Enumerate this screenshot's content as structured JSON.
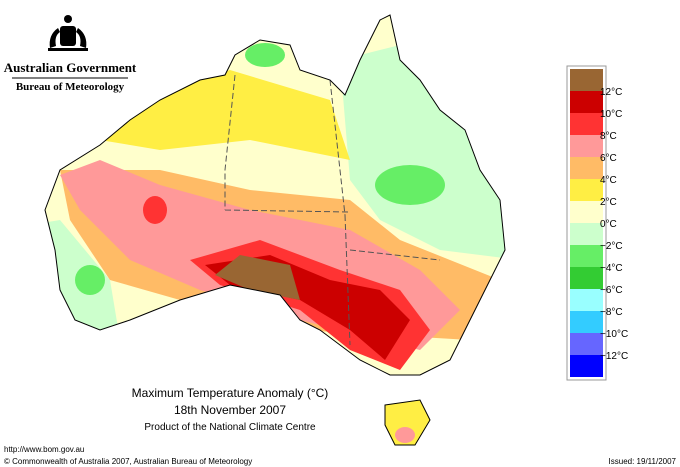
{
  "header": {
    "government": "Australian Government",
    "bureau": "Bureau of Meteorology"
  },
  "legend": {
    "colors": [
      "#996633",
      "#cc0000",
      "#ff3333",
      "#ff9999",
      "#ffbb66",
      "#ffee44",
      "#ffffcc",
      "#ccffcc",
      "#66ee66",
      "#33cc33",
      "#99ffff",
      "#33ccff",
      "#6666ff",
      "#0000ff"
    ],
    "labels": [
      "12°C",
      "10°C",
      "8°C",
      "6°C",
      "4°C",
      "2°C",
      "0°C",
      "−2°C",
      "−4°C",
      "−6°C",
      "−8°C",
      "−10°C",
      "−12°C"
    ]
  },
  "title": {
    "line1": "Maximum Temperature Anomaly (°C)",
    "line2": "18th November 2007",
    "line3": "Product of the National Climate Centre"
  },
  "footer": {
    "url": "http://www.bom.gov.au",
    "copyright": "© Commonwealth of Australia 2007, Australian Bureau of Meteorology",
    "issued": "Issued: 19/11/2007"
  }
}
